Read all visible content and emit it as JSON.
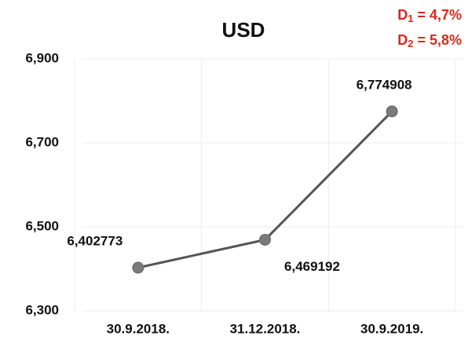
{
  "chart_data": {
    "type": "line",
    "title": "USD",
    "annotations": [
      {
        "base": "D",
        "sub": "1",
        "text": " = 4,7%"
      },
      {
        "base": "D",
        "sub": "2",
        "text": " = 5,8%"
      }
    ],
    "categories": [
      "30.9.2018.",
      "31.12.2018.",
      "30.9.2019."
    ],
    "series": [
      {
        "color": "#555555",
        "values": [
          6.402773,
          6.469192,
          6.774908
        ],
        "value_labels": [
          "6,402773",
          "6,469192",
          "6,774908"
        ]
      }
    ],
    "ylim": [
      6.3,
      6.9
    ],
    "yticks": [
      {
        "value": 6.3,
        "label": "6,300"
      },
      {
        "value": 6.5,
        "label": "6,500"
      },
      {
        "value": 6.7,
        "label": "6,700"
      },
      {
        "value": 6.9,
        "label": "6,900"
      }
    ],
    "grid": true
  }
}
